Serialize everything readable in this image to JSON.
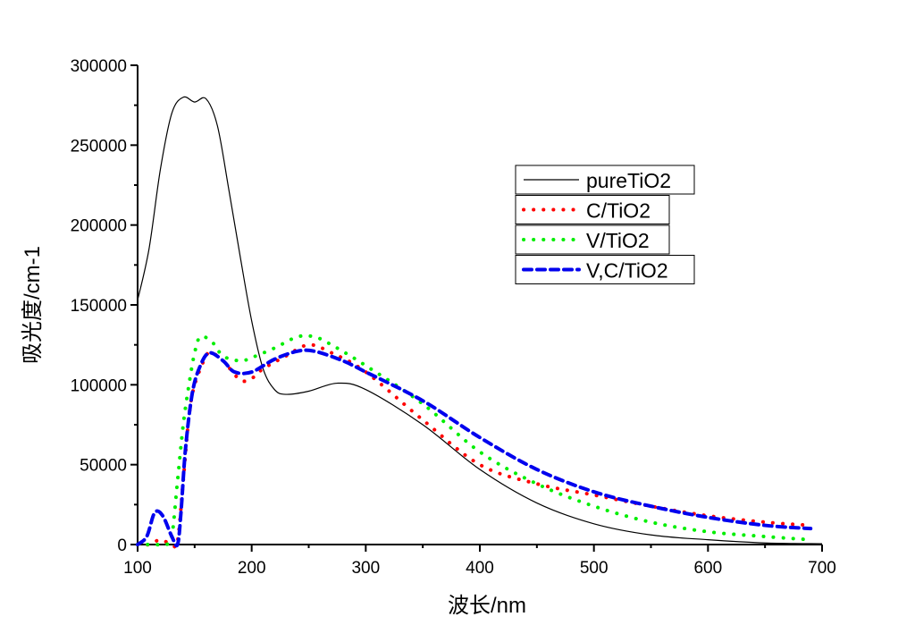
{
  "chart_data": {
    "type": "line",
    "title": "",
    "xlabel": "波长/nm",
    "ylabel": "吸光度/cm-1",
    "xlim": [
      100,
      700
    ],
    "ylim": [
      0,
      300000
    ],
    "xticks": [
      100,
      200,
      300,
      400,
      500,
      600,
      700
    ],
    "yticks": [
      0,
      50000,
      100000,
      150000,
      200000,
      250000,
      300000
    ],
    "xtick_labels": [
      "100",
      "200",
      "300",
      "400",
      "500",
      "600",
      "700"
    ],
    "ytick_labels": [
      "0",
      "50000",
      "100000",
      "150000",
      "200000",
      "250000",
      "300000"
    ],
    "grid": false,
    "legend_position": "upper-right-center",
    "series": [
      {
        "name": "pureTiO2",
        "color": "#000000",
        "style": "solid",
        "x": [
          100,
          110,
          120,
          130,
          140,
          150,
          160,
          170,
          180,
          190,
          200,
          210,
          220,
          230,
          250,
          275,
          300,
          350,
          400,
          450,
          500,
          550,
          600,
          650,
          700
        ],
        "y": [
          153000,
          185000,
          235000,
          270000,
          280000,
          277000,
          279000,
          262000,
          222000,
          180000,
          140000,
          110000,
          97000,
          94000,
          96000,
          101000,
          97000,
          75000,
          47000,
          26000,
          13000,
          6000,
          3000,
          1000,
          500
        ]
      },
      {
        "name": "C/TiO2",
        "color": "#ff0000",
        "style": "dotted",
        "x": [
          100,
          110,
          120,
          130,
          135,
          140,
          145,
          150,
          160,
          165,
          175,
          190,
          200,
          210,
          230,
          250,
          270,
          300,
          350,
          400,
          450,
          500,
          550,
          600,
          650,
          690
        ],
        "y": [
          0,
          0,
          3000,
          0,
          2000,
          40000,
          80000,
          100000,
          118000,
          120000,
          115000,
          103000,
          104000,
          110000,
          118000,
          125000,
          120000,
          108000,
          78000,
          50000,
          38000,
          31000,
          24000,
          18000,
          14000,
          12000
        ]
      },
      {
        "name": "V/TiO2",
        "color": "#00ee00",
        "style": "dotted",
        "x": [
          100,
          115,
          125,
          130,
          135,
          140,
          145,
          150,
          155,
          165,
          175,
          190,
          200,
          220,
          240,
          255,
          270,
          300,
          350,
          400,
          450,
          500,
          550,
          600,
          650,
          690
        ],
        "y": [
          0,
          0,
          0,
          5000,
          40000,
          75000,
          100000,
          120000,
          130000,
          127000,
          118000,
          115000,
          117000,
          123000,
          130000,
          130000,
          125000,
          112000,
          88000,
          58000,
          38000,
          24000,
          14000,
          8000,
          5000,
          3000
        ]
      },
      {
        "name": "V,C/TiO2",
        "color": "#0000ee",
        "style": "dashed",
        "x": [
          100,
          108,
          115,
          122,
          130,
          135,
          138,
          142,
          148,
          155,
          163,
          175,
          185,
          200,
          220,
          240,
          255,
          280,
          300,
          350,
          400,
          450,
          500,
          550,
          600,
          650,
          690
        ],
        "y": [
          0,
          5000,
          20000,
          18000,
          5000,
          0,
          20000,
          60000,
          95000,
          112000,
          120000,
          115000,
          108000,
          108000,
          116000,
          121000,
          121000,
          115000,
          108000,
          90000,
          67000,
          47000,
          33000,
          24000,
          17000,
          12000,
          10000
        ]
      }
    ]
  }
}
